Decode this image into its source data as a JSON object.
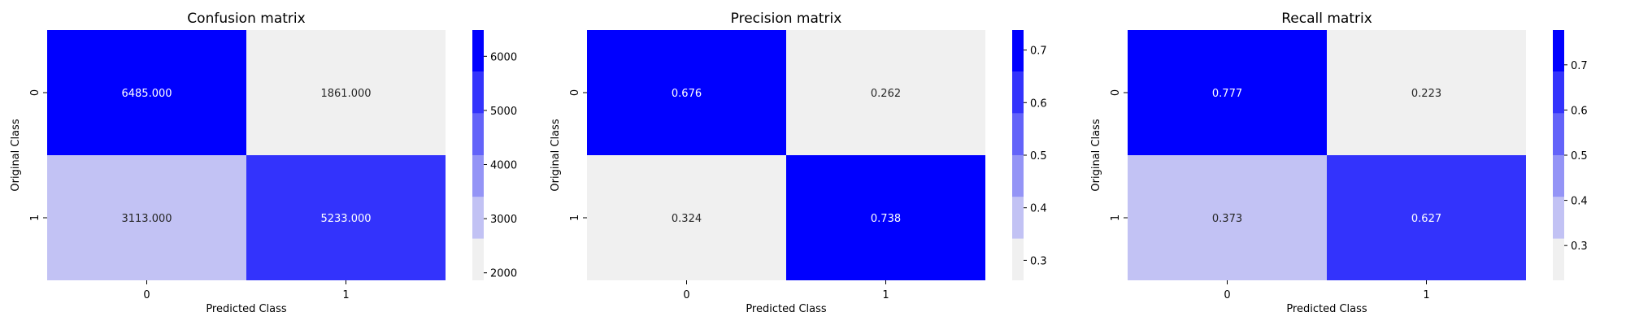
{
  "chart_data": [
    {
      "type": "heatmap",
      "title": "Confusion matrix",
      "xlabel": "Predicted Class",
      "ylabel": "Original Class",
      "x_categories": [
        "0",
        "1"
      ],
      "y_categories": [
        "0",
        "1"
      ],
      "values": [
        [
          6485.0,
          1861.0
        ],
        [
          3113.0,
          5233.0
        ]
      ],
      "value_labels": [
        [
          "6485.000",
          "1861.000"
        ],
        [
          "3113.000",
          "5233.000"
        ]
      ],
      "colorbar": {
        "min": 1861,
        "max": 6485,
        "ticks": [
          2000,
          3000,
          4000,
          5000,
          6000
        ],
        "discrete_levels": 6
      },
      "palette": [
        "#f0f0f0",
        "#c2c2f4",
        "#9494f6",
        "#6363f9",
        "#3333fc",
        "#0000ff"
      ]
    },
    {
      "type": "heatmap",
      "title": "Precision matrix",
      "xlabel": "Predicted Class",
      "ylabel": "Original Class",
      "x_categories": [
        "0",
        "1"
      ],
      "y_categories": [
        "0",
        "1"
      ],
      "values": [
        [
          0.676,
          0.262
        ],
        [
          0.324,
          0.738
        ]
      ],
      "value_labels": [
        [
          "0.676",
          "0.262"
        ],
        [
          "0.324",
          "0.738"
        ]
      ],
      "colorbar": {
        "min": 0.262,
        "max": 0.738,
        "ticks": [
          0.3,
          0.4,
          0.5,
          0.6,
          0.7
        ],
        "discrete_levels": 6
      },
      "palette": [
        "#f0f0f0",
        "#c2c2f4",
        "#9494f6",
        "#6363f9",
        "#3333fc",
        "#0000ff"
      ]
    },
    {
      "type": "heatmap",
      "title": "Recall matrix",
      "xlabel": "Predicted Class",
      "ylabel": "Original Class",
      "x_categories": [
        "0",
        "1"
      ],
      "y_categories": [
        "0",
        "1"
      ],
      "values": [
        [
          0.777,
          0.223
        ],
        [
          0.373,
          0.627
        ]
      ],
      "value_labels": [
        [
          "0.777",
          "0.223"
        ],
        [
          "0.373",
          "0.627"
        ]
      ],
      "colorbar": {
        "min": 0.223,
        "max": 0.777,
        "ticks": [
          0.3,
          0.4,
          0.5,
          0.6,
          0.7
        ],
        "discrete_levels": 6
      },
      "palette": [
        "#f0f0f0",
        "#c2c2f4",
        "#9494f6",
        "#6363f9",
        "#3333fc",
        "#0000ff"
      ]
    }
  ]
}
